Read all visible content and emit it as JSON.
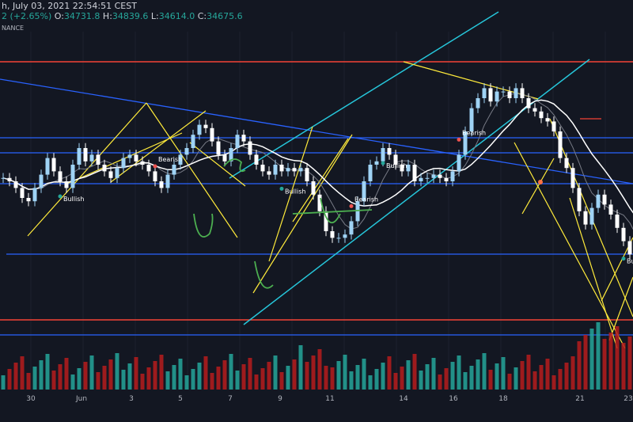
{
  "header": {
    "line1": "h, July 03, 2021 22:54:51 CEST",
    "change": "2 (+2.65%)",
    "o_label": "O:",
    "o_val": "34731.8",
    "h_label": "H:",
    "h_val": "34839.6",
    "l_label": "L:",
    "l_val": "34614.0",
    "c_label": "C:",
    "c_val": "34675.6",
    "exchange": "NANCE"
  },
  "x_ticks": [
    "30",
    "Jun",
    "3",
    "5",
    "7",
    "9",
    "11",
    "14",
    "16",
    "18",
    "21",
    "23"
  ],
  "colors": {
    "background": "#131722",
    "up": "#26a69a",
    "down": "#ef5350",
    "candle_up_body": "#9fd3f5",
    "candle_down_body": "#ffffff",
    "candle_green": "#4caf50",
    "support_blue": "#2962ff",
    "resistance_red": "#f44336",
    "channel_cyan": "#26c6da",
    "trend_yellow": "#ffeb3b",
    "ma_white": "#ffffff",
    "ma_gray": "#787b86",
    "volume_up": "#26a69a",
    "volume_down": "#b71c1c",
    "annotation_green": "#4caf50"
  },
  "signals": [
    {
      "label": "Bullish",
      "type": "bull"
    },
    {
      "label": "Bearish",
      "type": "bear"
    },
    {
      "label": "Bearish",
      "type": "bear"
    },
    {
      "label": "Bullish",
      "type": "bull"
    },
    {
      "label": "Bullish",
      "type": "bull"
    },
    {
      "label": "Bearish",
      "type": "bear"
    },
    {
      "label": "Bullish",
      "type": "bull"
    }
  ],
  "chart_data": {
    "type": "candlestick",
    "close_series_approx": [
      31,
      30,
      28,
      25,
      24,
      28,
      32,
      37,
      33,
      30,
      28,
      35,
      40,
      36,
      38,
      35,
      33,
      31,
      34,
      37,
      38,
      36,
      35,
      33,
      30,
      28,
      32,
      35,
      38,
      40,
      44,
      47,
      46,
      42,
      38,
      36,
      40,
      44,
      42,
      38,
      35,
      33,
      32,
      35,
      33,
      34,
      33,
      34,
      30,
      26,
      21,
      15,
      13,
      13,
      14,
      18,
      24,
      30,
      35,
      36,
      40,
      38,
      35,
      33,
      35,
      30,
      31,
      31,
      32,
      31,
      30,
      33,
      38,
      45,
      52,
      55,
      58,
      54,
      57,
      57,
      55,
      58,
      55,
      52,
      51,
      49,
      48,
      45,
      37,
      34,
      28,
      21,
      17,
      22,
      26,
      23,
      20,
      16,
      12,
      8,
      4,
      5,
      6,
      3,
      4,
      8
    ]
  }
}
